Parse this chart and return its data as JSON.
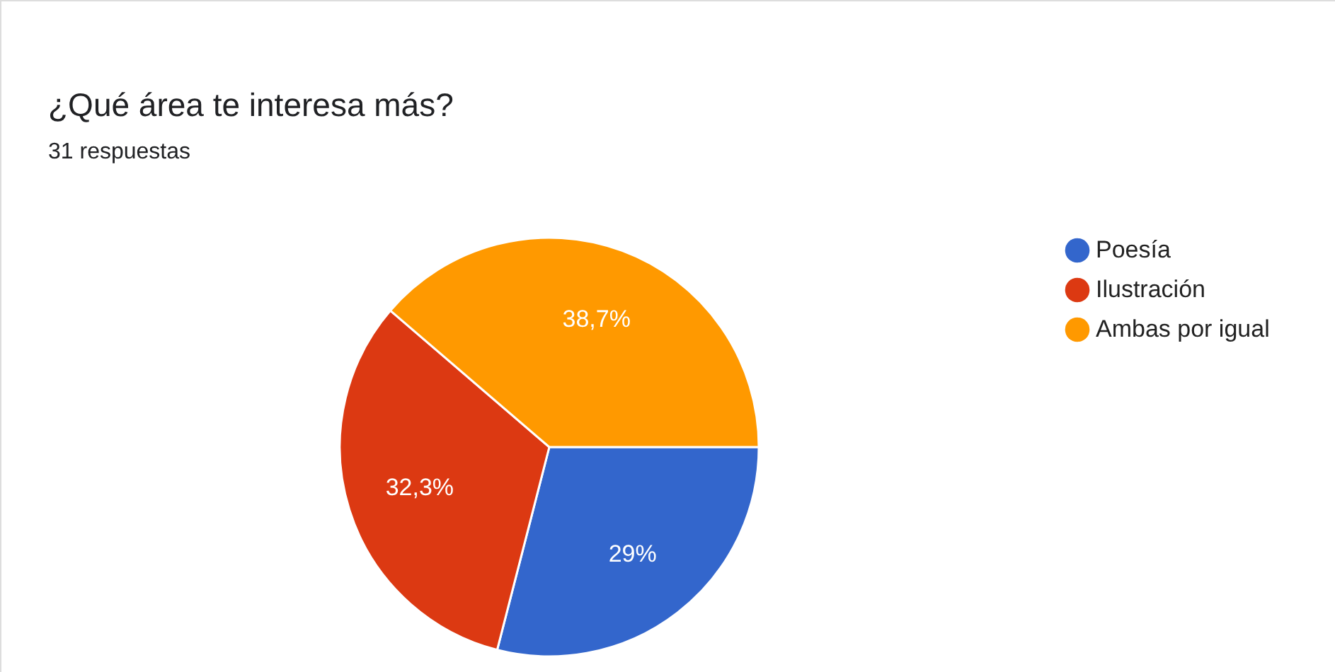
{
  "chart_data": {
    "type": "pie",
    "title": "¿Qué área te interesa más?",
    "subtitle": "31 respuestas",
    "categories": [
      "Poesía",
      "Ilustración",
      "Ambas por igual"
    ],
    "values": [
      29,
      32.3,
      38.7
    ],
    "value_labels": [
      "29%",
      "32,3%",
      "38,7%"
    ],
    "colors": [
      "#3366cc",
      "#dc3912",
      "#ff9900"
    ],
    "legend": "right"
  }
}
